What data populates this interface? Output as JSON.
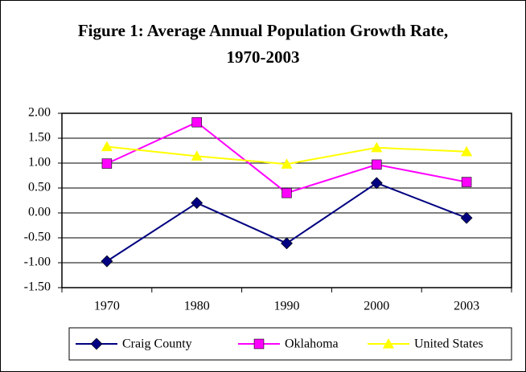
{
  "chart_data": {
    "type": "line",
    "title": "Figure 1: Average Annual Population Growth Rate, 1970-2003",
    "categories": [
      "1970",
      "1980",
      "1990",
      "2000",
      "2003"
    ],
    "series": [
      {
        "name": "Craig County",
        "color": "#000080",
        "marker": "diamond",
        "values": [
          -0.97,
          0.2,
          -0.61,
          0.6,
          -0.1
        ]
      },
      {
        "name": "Oklahoma",
        "color": "#ff00ff",
        "marker": "square",
        "values": [
          0.99,
          1.82,
          0.4,
          0.97,
          0.62
        ]
      },
      {
        "name": "United States",
        "color": "#ffff00",
        "marker": "triangle",
        "values": [
          1.33,
          1.14,
          0.98,
          1.31,
          1.23
        ]
      }
    ],
    "ylim": [
      -1.5,
      2.0
    ],
    "yticks": [
      {
        "value": -1.5,
        "label": "-1.50"
      },
      {
        "value": -1.0,
        "label": "-1.00"
      },
      {
        "value": -0.5,
        "label": "-0.50"
      },
      {
        "value": 0,
        "label": "0.00"
      },
      {
        "value": 0.5,
        "label": "0.50"
      },
      {
        "value": 1.0,
        "label": "1.00"
      },
      {
        "value": 1.5,
        "label": "1.50"
      },
      {
        "value": 2.0,
        "label": "2.00"
      }
    ],
    "grid": true,
    "legend": "bottom"
  }
}
